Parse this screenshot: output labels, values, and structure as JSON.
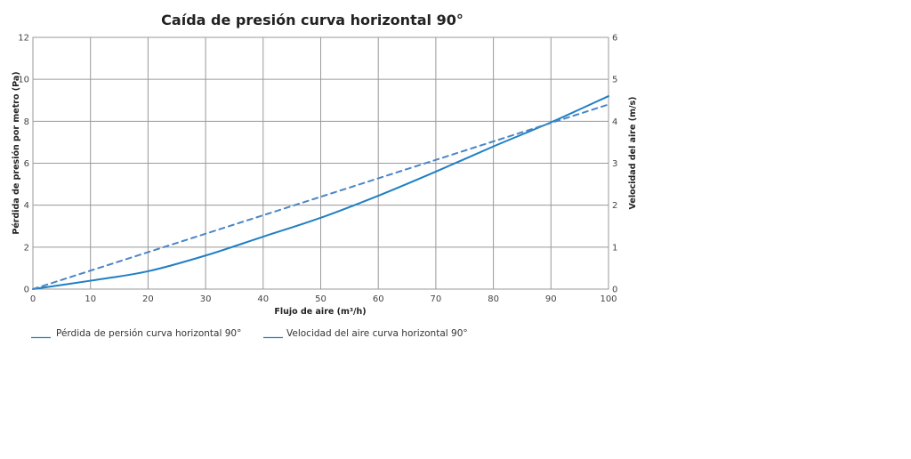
{
  "chart_data": {
    "type": "line",
    "title": "Caída de presión curva horizontal 90°",
    "xlabel": "Flujo de aire (m³/h)",
    "ylabel": "Pérdida de presión por metro (Pa)",
    "y2label": "Velocidad del aire (m/s)",
    "xlim": [
      0,
      100
    ],
    "ylim": [
      0,
      12
    ],
    "y2lim": [
      0,
      6
    ],
    "xticks": [
      "0",
      "10",
      "20",
      "30",
      "40",
      "50",
      "60",
      "70",
      "80",
      "90",
      "100"
    ],
    "yticks": [
      "0",
      "2",
      "4",
      "6",
      "8",
      "10",
      "12"
    ],
    "y2ticks": [
      "0",
      "1",
      "2",
      "3",
      "4",
      "5",
      "6"
    ],
    "grid": true,
    "legend_position": "bottom",
    "series": [
      {
        "name": "Pérdida de persión curva horizontal 90°",
        "axis": "left",
        "style": "solid",
        "color": "#1f7fc4",
        "x": [
          0,
          10,
          20,
          30,
          40,
          50,
          60,
          70,
          80,
          90,
          100
        ],
        "y": [
          0,
          0.4,
          0.85,
          1.6,
          2.5,
          3.4,
          4.45,
          5.6,
          6.8,
          7.95,
          9.2
        ]
      },
      {
        "name": "Velocidad del aire curva horizontal 90°",
        "axis": "right",
        "style": "dashed",
        "color": "#4a86c5",
        "x": [
          0,
          100
        ],
        "y": [
          0,
          4.4
        ]
      }
    ]
  }
}
